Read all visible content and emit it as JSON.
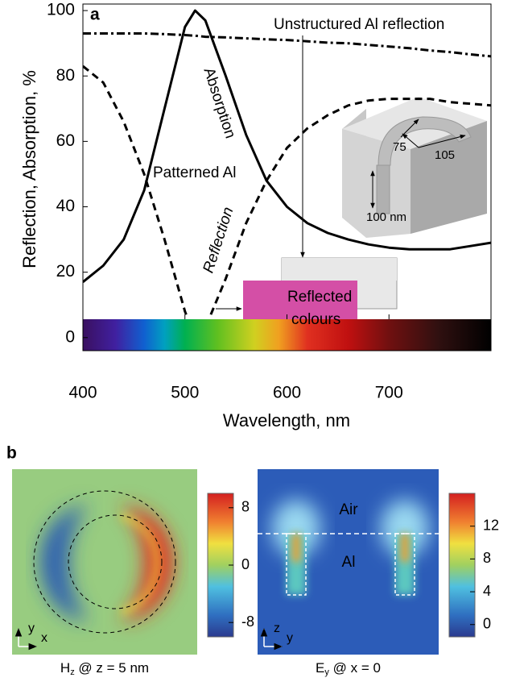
{
  "chart_data": [
    {
      "type": "line",
      "panel": "a",
      "xlabel": "Wavelength, nm",
      "ylabel": "Reflection, Absorption, %",
      "x": [
        400,
        420,
        440,
        460,
        480,
        500,
        510,
        520,
        540,
        560,
        580,
        600,
        620,
        640,
        660,
        680,
        700,
        720,
        740,
        760,
        780,
        800
      ],
      "xlim": [
        400,
        800
      ],
      "xticks": [
        400,
        500,
        600,
        700
      ],
      "ylim": [
        -4,
        102
      ],
      "yticks": [
        0,
        20,
        40,
        60,
        80,
        100
      ],
      "series": [
        {
          "name": "Absorption",
          "color": "#000000",
          "style": "solid",
          "values": [
            17,
            22,
            30,
            45,
            70,
            95,
            100,
            97,
            80,
            62,
            48,
            40,
            35,
            32,
            30,
            28.5,
            27.5,
            27,
            27,
            27,
            28,
            29
          ]
        },
        {
          "name": "Reflection",
          "color": "#000000",
          "style": "dashed",
          "values": [
            83,
            78,
            66,
            50,
            30,
            8,
            0,
            3,
            18,
            35,
            48,
            58,
            64,
            68,
            71,
            72.5,
            73,
            73,
            73,
            72,
            71.5,
            71
          ]
        },
        {
          "name": "Unstructured Al reflection",
          "color": "#000000",
          "style": "dashdot",
          "values": [
            93,
            93,
            93,
            93,
            92.8,
            92.5,
            92.3,
            92,
            91.8,
            91.5,
            91.2,
            91,
            90.6,
            90.2,
            90,
            89.5,
            89,
            88.5,
            87.8,
            87.3,
            86.6,
            86
          ]
        }
      ],
      "annotations": [
        "Patterned Al",
        "Reflected",
        "colours",
        "75",
        "105",
        "100 nm"
      ]
    },
    {
      "type": "heatmap",
      "panel": "b",
      "title": [
        "H",
        "z",
        " @ z = 5 nm"
      ],
      "clim": [
        -10,
        10
      ],
      "cticks": [
        -8,
        0,
        8
      ],
      "axes": [
        "y",
        "x"
      ]
    },
    {
      "type": "heatmap",
      "title": [
        "E",
        "y",
        " @ x = 0"
      ],
      "clim": [
        -1.5,
        16
      ],
      "cticks": [
        0,
        4,
        8,
        12
      ],
      "axes": [
        "z",
        "y"
      ],
      "annotations": [
        "Air",
        "Al"
      ]
    }
  ]
}
